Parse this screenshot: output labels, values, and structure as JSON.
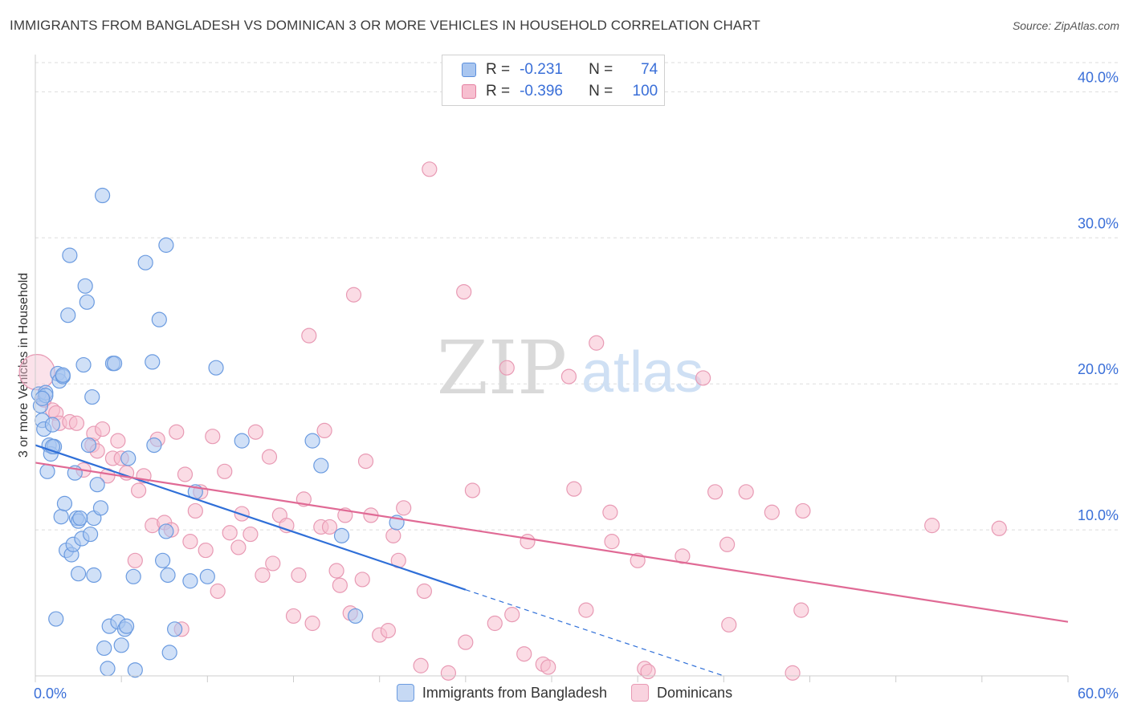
{
  "header": {
    "title": "IMMIGRANTS FROM BANGLADESH VS DOMINICAN 3 OR MORE VEHICLES IN HOUSEHOLD CORRELATION CHART",
    "source": "Source: ZipAtlas.com"
  },
  "watermark": {
    "zip": "ZIP",
    "atlas": "atlas"
  },
  "legend": {
    "rows": [
      {
        "r_label": "R =",
        "r_value": "-0.231",
        "n_label": "N =",
        "n_value": "74",
        "color": "#a9c6f0",
        "border": "#5b8fdc"
      },
      {
        "r_label": "R =",
        "r_value": "-0.396",
        "n_label": "N =",
        "n_value": "100",
        "color": "#f7bfd0",
        "border": "#e47fa0"
      }
    ],
    "series_names": [
      "Immigrants from Bangladesh",
      "Dominicans"
    ]
  },
  "colors": {
    "blue_fill": "#a9c6f0",
    "blue_stroke": "#6b9be0",
    "blue_line": "#2f6fd8",
    "pink_fill": "#f7bfd0",
    "pink_stroke": "#e89ab4",
    "pink_line": "#e06a95",
    "grid": "#dddddd",
    "tick_text": "#3a6fd8"
  },
  "chart_data": {
    "type": "scatter",
    "title": "IMMIGRANTS FROM BANGLADESH VS DOMINICAN 3 OR MORE VEHICLES IN HOUSEHOLD CORRELATION CHART",
    "xlabel": "",
    "ylabel": "3 or more Vehicles in Household",
    "xlim": [
      0,
      60
    ],
    "ylim": [
      0,
      42
    ],
    "x_tick_labels": [
      "0.0%",
      "60.0%"
    ],
    "y_ticks": [
      10,
      20,
      30,
      40
    ],
    "y_tick_labels": [
      "10.0%",
      "20.0%",
      "30.0%",
      "40.0%"
    ],
    "grid": true,
    "legend_position": "top-center",
    "series": [
      {
        "name": "Immigrants from Bangladesh",
        "points": [
          [
            0.2,
            19.3
          ],
          [
            0.3,
            18.5
          ],
          [
            0.4,
            17.5
          ],
          [
            0.5,
            16.9
          ],
          [
            0.6,
            19.4
          ],
          [
            0.7,
            14.0
          ],
          [
            0.8,
            15.8
          ],
          [
            0.9,
            15.2
          ],
          [
            1.0,
            17.2
          ],
          [
            1.1,
            15.7
          ],
          [
            1.2,
            3.9
          ],
          [
            1.3,
            20.7
          ],
          [
            1.4,
            20.2
          ],
          [
            1.5,
            10.9
          ],
          [
            1.6,
            20.5
          ],
          [
            1.7,
            11.8
          ],
          [
            1.8,
            8.6
          ],
          [
            1.9,
            24.7
          ],
          [
            2.0,
            28.8
          ],
          [
            2.1,
            8.3
          ],
          [
            2.2,
            9.0
          ],
          [
            2.3,
            13.9
          ],
          [
            2.4,
            10.8
          ],
          [
            2.5,
            10.6
          ],
          [
            2.7,
            9.4
          ],
          [
            2.8,
            21.3
          ],
          [
            2.9,
            26.7
          ],
          [
            3.0,
            25.6
          ],
          [
            3.1,
            15.8
          ],
          [
            3.2,
            9.7
          ],
          [
            3.3,
            19.1
          ],
          [
            3.4,
            10.8
          ],
          [
            3.6,
            13.1
          ],
          [
            3.8,
            11.5
          ],
          [
            3.9,
            32.9
          ],
          [
            4.0,
            1.9
          ],
          [
            4.2,
            0.5
          ],
          [
            4.3,
            3.4
          ],
          [
            4.5,
            21.4
          ],
          [
            4.6,
            21.4
          ],
          [
            4.8,
            3.7
          ],
          [
            5.0,
            2.1
          ],
          [
            5.2,
            3.2
          ],
          [
            5.3,
            3.4
          ],
          [
            5.4,
            14.9
          ],
          [
            5.7,
            6.8
          ],
          [
            5.8,
            0.4
          ],
          [
            6.4,
            28.3
          ],
          [
            6.9,
            15.8
          ],
          [
            7.2,
            24.4
          ],
          [
            7.4,
            7.9
          ],
          [
            7.6,
            9.9
          ],
          [
            7.7,
            6.9
          ],
          [
            7.8,
            1.6
          ],
          [
            8.1,
            3.2
          ],
          [
            9.3,
            12.6
          ],
          [
            9.0,
            6.5
          ],
          [
            10.0,
            6.8
          ],
          [
            10.5,
            21.1
          ],
          [
            12.0,
            16.1
          ],
          [
            16.1,
            16.1
          ],
          [
            16.6,
            14.4
          ],
          [
            17.8,
            9.6
          ],
          [
            18.6,
            4.1
          ],
          [
            21.0,
            10.5
          ],
          [
            2.5,
            7.0
          ],
          [
            3.4,
            6.9
          ],
          [
            0.6,
            19.2
          ],
          [
            7.6,
            29.5
          ],
          [
            6.8,
            21.5
          ],
          [
            1.0,
            15.7
          ],
          [
            2.6,
            10.8
          ],
          [
            0.4,
            19.0
          ],
          [
            1.6,
            20.6
          ]
        ]
      },
      {
        "name": "Dominicans",
        "points": [
          [
            0.1,
            20.8
          ],
          [
            0.5,
            18.9
          ],
          [
            1.0,
            18.2
          ],
          [
            1.2,
            18.0
          ],
          [
            1.4,
            17.3
          ],
          [
            2.0,
            17.4
          ],
          [
            2.4,
            17.3
          ],
          [
            2.8,
            14.1
          ],
          [
            3.3,
            15.8
          ],
          [
            3.4,
            16.6
          ],
          [
            3.6,
            15.4
          ],
          [
            3.9,
            16.9
          ],
          [
            4.2,
            13.7
          ],
          [
            4.5,
            14.9
          ],
          [
            4.8,
            16.1
          ],
          [
            5.0,
            14.9
          ],
          [
            5.3,
            13.9
          ],
          [
            5.8,
            7.9
          ],
          [
            6.0,
            12.7
          ],
          [
            6.3,
            13.7
          ],
          [
            6.8,
            10.3
          ],
          [
            7.1,
            16.2
          ],
          [
            7.5,
            10.5
          ],
          [
            7.9,
            10.0
          ],
          [
            8.2,
            16.7
          ],
          [
            8.5,
            3.2
          ],
          [
            8.7,
            13.8
          ],
          [
            9.0,
            9.2
          ],
          [
            9.3,
            11.3
          ],
          [
            9.6,
            12.6
          ],
          [
            9.9,
            8.6
          ],
          [
            10.3,
            16.4
          ],
          [
            10.6,
            5.8
          ],
          [
            11.0,
            14.0
          ],
          [
            11.3,
            9.8
          ],
          [
            11.8,
            8.8
          ],
          [
            12.0,
            11.1
          ],
          [
            12.5,
            9.7
          ],
          [
            12.8,
            16.7
          ],
          [
            13.2,
            6.9
          ],
          [
            13.6,
            15.0
          ],
          [
            13.8,
            7.7
          ],
          [
            14.2,
            11.0
          ],
          [
            14.6,
            10.3
          ],
          [
            15.0,
            4.1
          ],
          [
            15.3,
            6.9
          ],
          [
            15.6,
            12.1
          ],
          [
            15.9,
            23.3
          ],
          [
            16.1,
            3.6
          ],
          [
            16.6,
            10.2
          ],
          [
            16.8,
            16.8
          ],
          [
            17.1,
            10.2
          ],
          [
            17.5,
            7.2
          ],
          [
            17.7,
            6.2
          ],
          [
            18.0,
            11.0
          ],
          [
            18.3,
            4.3
          ],
          [
            18.5,
            26.1
          ],
          [
            19.0,
            6.6
          ],
          [
            19.2,
            14.7
          ],
          [
            19.5,
            11.0
          ],
          [
            20.0,
            2.8
          ],
          [
            20.5,
            3.1
          ],
          [
            20.8,
            9.6
          ],
          [
            21.1,
            7.9
          ],
          [
            21.4,
            11.5
          ],
          [
            22.4,
            0.7
          ],
          [
            22.6,
            5.8
          ],
          [
            22.9,
            34.7
          ],
          [
            24.0,
            0.2
          ],
          [
            24.9,
            26.3
          ],
          [
            25.0,
            2.3
          ],
          [
            25.4,
            12.7
          ],
          [
            26.7,
            3.6
          ],
          [
            27.4,
            21.1
          ],
          [
            27.7,
            4.2
          ],
          [
            28.4,
            1.5
          ],
          [
            28.6,
            9.2
          ],
          [
            29.5,
            0.8
          ],
          [
            29.8,
            0.6
          ],
          [
            31.0,
            20.5
          ],
          [
            31.3,
            12.8
          ],
          [
            32.0,
            4.5
          ],
          [
            32.6,
            22.8
          ],
          [
            33.4,
            11.2
          ],
          [
            33.5,
            9.2
          ],
          [
            35.0,
            7.9
          ],
          [
            35.4,
            0.5
          ],
          [
            35.6,
            0.3
          ],
          [
            37.6,
            8.2
          ],
          [
            38.8,
            20.4
          ],
          [
            39.5,
            12.6
          ],
          [
            40.2,
            9.0
          ],
          [
            40.3,
            3.5
          ],
          [
            41.3,
            12.6
          ],
          [
            42.8,
            11.2
          ],
          [
            44.0,
            0.2
          ],
          [
            44.5,
            4.5
          ],
          [
            44.6,
            11.3
          ],
          [
            52.1,
            10.3
          ],
          [
            56.0,
            10.1
          ]
        ]
      }
    ],
    "trendlines": [
      {
        "series": "Immigrants from Bangladesh",
        "solid": [
          [
            0,
            15.8
          ],
          [
            25,
            5.9
          ]
        ],
        "dashed": [
          [
            25,
            5.9
          ],
          [
            40,
            0
          ]
        ]
      },
      {
        "series": "Dominicans",
        "solid": [
          [
            0,
            14.6
          ],
          [
            60,
            3.7
          ]
        ]
      }
    ]
  }
}
